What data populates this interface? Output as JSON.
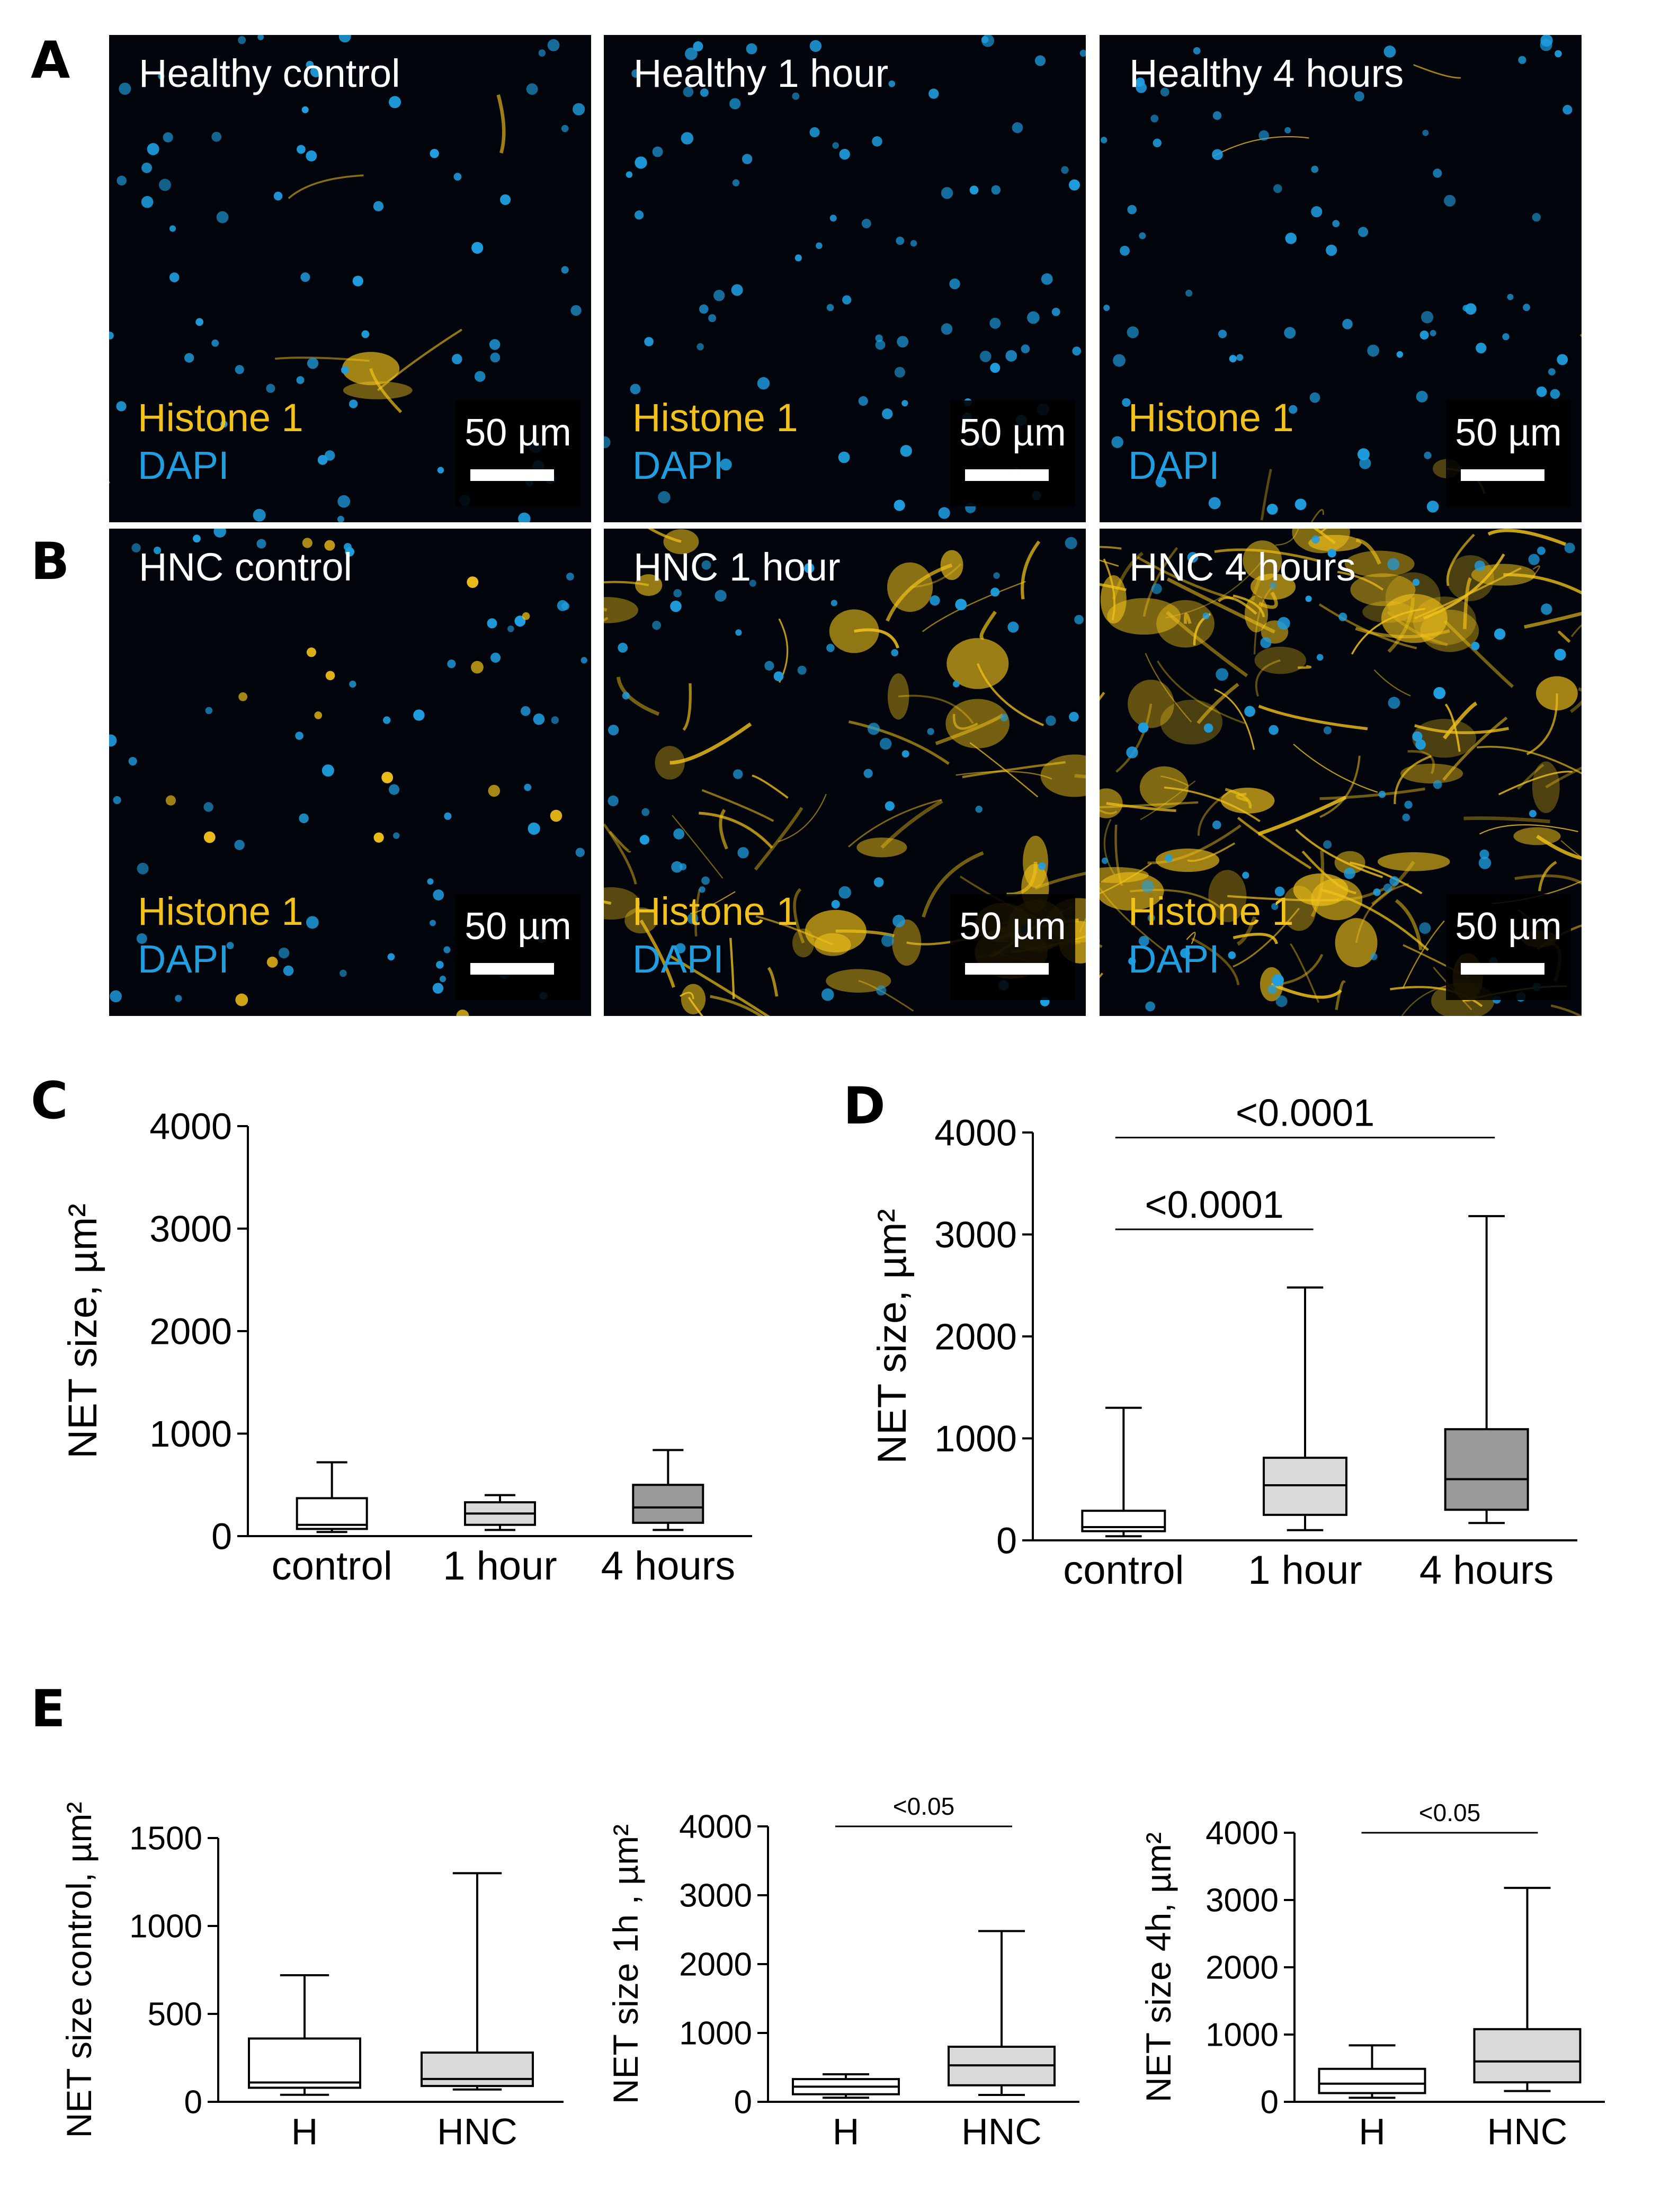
{
  "panel_letters": [
    "A",
    "B",
    "C",
    "D",
    "E"
  ],
  "micrographs": [
    {
      "title": "Healthy control",
      "stain1": "Histone 1",
      "stain2": "DAPI",
      "scale": "50 µm",
      "net_level": 0.05
    },
    {
      "title": "Healthy 1 hour",
      "stain1": "Histone 1",
      "stain2": "DAPI",
      "scale": "50 µm",
      "net_level": 0.0
    },
    {
      "title": "Healthy 4 hours",
      "stain1": "Histone 1",
      "stain2": "DAPI",
      "scale": "50 µm",
      "net_level": 0.05
    },
    {
      "title": "HNC control",
      "stain1": "Histone 1",
      "stain2": "DAPI",
      "scale": "50 µm",
      "net_level": 0.0
    },
    {
      "title": "HNC 1 hour",
      "stain1": "Histone 1",
      "stain2": "DAPI",
      "scale": "50 µm",
      "net_level": 0.5
    },
    {
      "title": "HNC 4 hours",
      "stain1": "Histone 1",
      "stain2": "DAPI",
      "scale": "50 µm",
      "net_level": 1.0
    }
  ],
  "colors": {
    "histone": "#f2c21a",
    "dapi": "#1f9ee0",
    "box_white": "#ffffff",
    "box_light": "#d9d9d9",
    "box_dark": "#9a9a9a"
  },
  "chart_data": [
    {
      "id": "C",
      "type": "box",
      "ylabel": "NET size, µm²",
      "ylim": [
        0,
        4000
      ],
      "yticks": [
        0,
        1000,
        2000,
        3000,
        4000
      ],
      "categories": [
        "control",
        "1 hour",
        "4 hours"
      ],
      "boxes": [
        {
          "min": 40,
          "q1": 70,
          "median": 110,
          "q3": 370,
          "max": 720,
          "fill": "#ffffff"
        },
        {
          "min": 60,
          "q1": 110,
          "median": 220,
          "q3": 330,
          "max": 400,
          "fill": "#d9d9d9"
        },
        {
          "min": 60,
          "q1": 130,
          "median": 280,
          "q3": 500,
          "max": 840,
          "fill": "#9a9a9a"
        }
      ],
      "comparisons": []
    },
    {
      "id": "D",
      "type": "box",
      "ylabel": "NET size, µm²",
      "ylim": [
        0,
        4000
      ],
      "yticks": [
        0,
        1000,
        2000,
        3000,
        4000
      ],
      "categories": [
        "control",
        "1 hour",
        "4 hours"
      ],
      "boxes": [
        {
          "min": 40,
          "q1": 90,
          "median": 130,
          "q3": 290,
          "max": 1300,
          "fill": "#ffffff"
        },
        {
          "min": 100,
          "q1": 250,
          "median": 540,
          "q3": 810,
          "max": 2480,
          "fill": "#d9d9d9"
        },
        {
          "min": 170,
          "q1": 300,
          "median": 600,
          "q3": 1090,
          "max": 3180,
          "fill": "#9a9a9a"
        }
      ],
      "comparisons": [
        {
          "from": 0,
          "to": 1,
          "label": "<0.0001",
          "y": 3050
        },
        {
          "from": 0,
          "to": 2,
          "label": "<0.0001",
          "y": 3950
        }
      ]
    },
    {
      "id": "E1",
      "type": "box",
      "ylabel": "NET size control, µm²",
      "ylim": [
        0,
        1500
      ],
      "yticks": [
        0,
        500,
        1000,
        1500
      ],
      "categories": [
        "H",
        "HNC"
      ],
      "boxes": [
        {
          "min": 40,
          "q1": 80,
          "median": 110,
          "q3": 360,
          "max": 720,
          "fill": "#ffffff"
        },
        {
          "min": 70,
          "q1": 90,
          "median": 130,
          "q3": 280,
          "max": 1300,
          "fill": "#d9d9d9"
        }
      ],
      "comparisons": []
    },
    {
      "id": "E2",
      "type": "box",
      "ylabel": "NET size 1h , µm²",
      "ylim": [
        0,
        4000
      ],
      "yticks": [
        0,
        1000,
        2000,
        3000,
        4000
      ],
      "categories": [
        "H",
        "HNC"
      ],
      "boxes": [
        {
          "min": 60,
          "q1": 110,
          "median": 220,
          "q3": 330,
          "max": 400,
          "fill": "#ffffff"
        },
        {
          "min": 100,
          "q1": 240,
          "median": 530,
          "q3": 800,
          "max": 2480,
          "fill": "#d9d9d9"
        }
      ],
      "comparisons": [
        {
          "from": 0,
          "to": 1,
          "label": "<0.05",
          "y": 4000
        }
      ]
    },
    {
      "id": "E3",
      "type": "box",
      "ylabel": "NET size 4h, µm²",
      "ylim": [
        0,
        4000
      ],
      "yticks": [
        0,
        1000,
        2000,
        3000,
        4000
      ],
      "categories": [
        "H",
        "HNC"
      ],
      "boxes": [
        {
          "min": 60,
          "q1": 130,
          "median": 270,
          "q3": 490,
          "max": 840,
          "fill": "#ffffff"
        },
        {
          "min": 160,
          "q1": 290,
          "median": 600,
          "q3": 1080,
          "max": 3180,
          "fill": "#d9d9d9"
        }
      ],
      "comparisons": [
        {
          "from": 0,
          "to": 1,
          "label": "<0.05",
          "y": 4000
        }
      ]
    }
  ]
}
